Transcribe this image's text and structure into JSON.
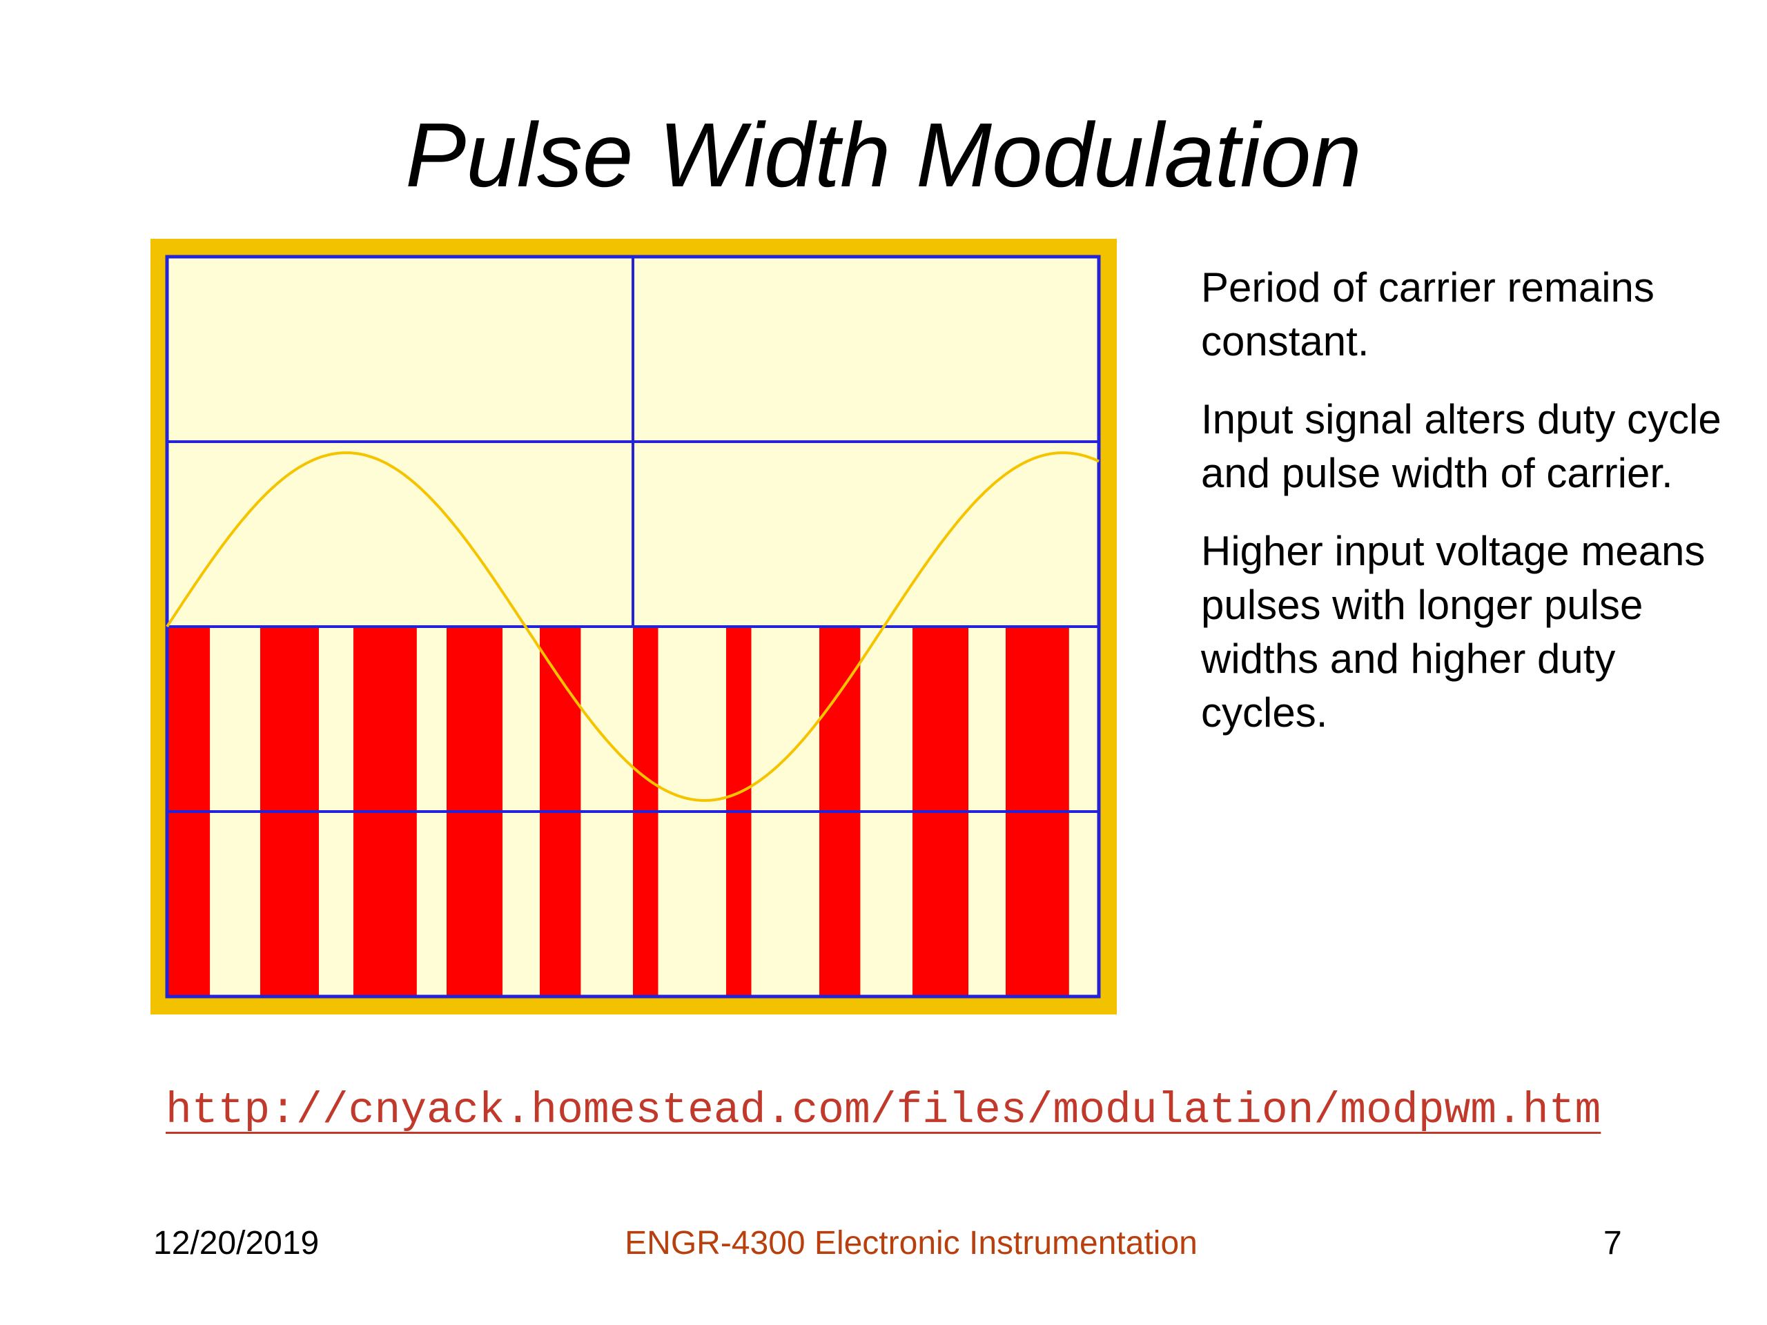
{
  "slide": {
    "title": "Pulse Width Modulation",
    "bullets": [
      "Period of carrier remains constant.",
      "Input signal alters duty cycle and pulse width of carrier.",
      "Higher input voltage means pulses with longer pulse widths and higher duty cycles."
    ],
    "url": "http://cnyack.homestead.com/files/modulation/modpwm.htm"
  },
  "footer": {
    "date": "12/20/2019",
    "course": "ENGR-4300  Electronic Instrumentation",
    "page": "7"
  },
  "colors": {
    "frame_border": "#f2c200",
    "screen_background": "#fffdd6",
    "grid_lines": "#2424d6",
    "sine_wave": "#f5c400",
    "pulses": "#ff0000",
    "footer_course": "#b8400f",
    "url": "#c0392b"
  },
  "chart_data": {
    "type": "line",
    "title": "",
    "xlabel": "",
    "ylabel": "",
    "grid": true,
    "grid_divisions": {
      "x": 2,
      "y": 4
    },
    "series": [
      {
        "kind": "sine",
        "description_of_shape": "input signal",
        "cycles_shown": 1.3,
        "peak_divisions": 0.94,
        "trough_divisions": -0.94
      },
      {
        "kind": "pwm-pulses",
        "pulse_count": 10,
        "carrier_period_fraction_of_width": 0.1,
        "duty_cycles": [
          0.46,
          0.63,
          0.68,
          0.6,
          0.44,
          0.27,
          0.27,
          0.44,
          0.6,
          0.68
        ]
      }
    ]
  }
}
